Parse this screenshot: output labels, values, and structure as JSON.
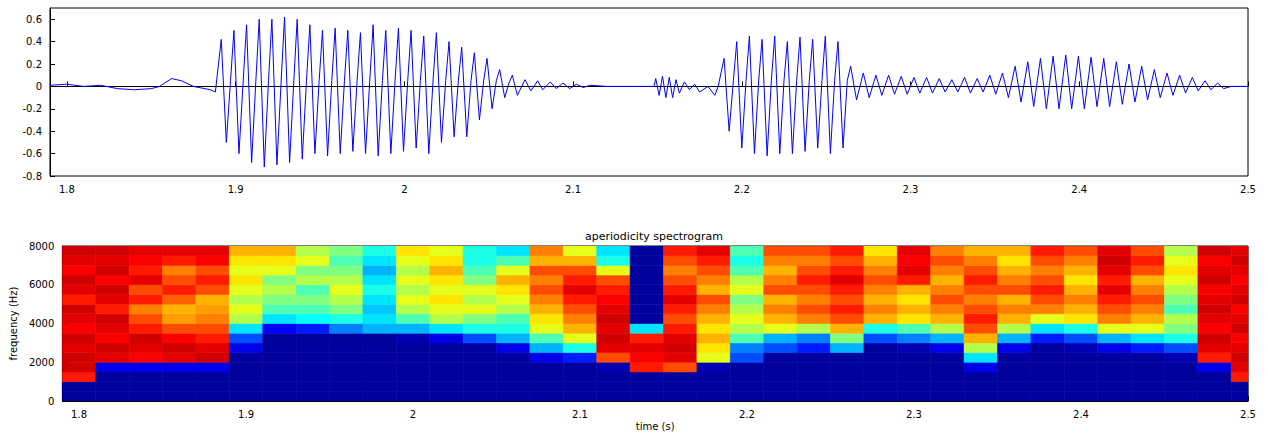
{
  "chart_data": [
    {
      "type": "line",
      "color": "#0000ff",
      "xlim": [
        1.79,
        2.5
      ],
      "ylim": [
        -0.8,
        0.7
      ],
      "xticks": [
        1.8,
        1.9,
        2,
        2.1,
        2.2,
        2.3,
        2.4,
        2.5
      ],
      "yticks": [
        -0.8,
        -0.6,
        -0.4,
        -0.2,
        0,
        0.2,
        0.4,
        0.6
      ],
      "x": [
        1.79,
        1.8,
        1.81,
        1.82,
        1.83,
        1.84,
        1.85,
        1.855,
        1.862,
        1.868,
        1.875,
        1.885,
        1.888,
        1.8915,
        1.8945,
        1.897,
        1.899,
        1.902,
        1.9045,
        1.9065,
        1.9095,
        1.912,
        1.914,
        1.917,
        1.9195,
        1.9215,
        1.9245,
        1.927,
        1.929,
        1.932,
        1.9345,
        1.9365,
        1.9395,
        1.942,
        1.944,
        1.947,
        1.9495,
        1.9515,
        1.9545,
        1.957,
        1.959,
        1.962,
        1.9645,
        1.9665,
        1.9695,
        1.972,
        1.974,
        1.977,
        1.9795,
        1.9815,
        1.9845,
        1.987,
        1.989,
        1.992,
        1.9945,
        1.9965,
        1.9995,
        2.002,
        2.004,
        2.007,
        2.0095,
        2.0115,
        2.0145,
        2.017,
        2.019,
        2.022,
        2.0245,
        2.0265,
        2.0295,
        2.032,
        2.034,
        2.037,
        2.0395,
        2.0415,
        2.0445,
        2.047,
        2.049,
        2.052,
        2.0545,
        2.0565,
        2.0595,
        2.062,
        2.064,
        2.067,
        2.0715,
        2.075,
        2.079,
        2.082,
        2.0865,
        2.09,
        2.094,
        2.098,
        2.102,
        2.106,
        2.11,
        2.12,
        2.13,
        2.148,
        2.149,
        2.151,
        2.153,
        2.155,
        2.157,
        2.159,
        2.161,
        2.163,
        2.166,
        2.169,
        2.172,
        2.175,
        2.18,
        2.184,
        2.186,
        2.1895,
        2.1925,
        2.195,
        2.197,
        2.2,
        2.2025,
        2.2045,
        2.2075,
        2.21,
        2.212,
        2.215,
        2.2175,
        2.2195,
        2.2225,
        2.225,
        2.227,
        2.23,
        2.2325,
        2.2345,
        2.2375,
        2.24,
        2.242,
        2.245,
        2.2475,
        2.2495,
        2.2525,
        2.255,
        2.257,
        2.26,
        2.2625,
        2.2645,
        2.268,
        2.272,
        2.2755,
        2.2795,
        2.283,
        2.287,
        2.2905,
        2.2945,
        2.298,
        2.302,
        2.3055,
        2.3095,
        2.313,
        2.317,
        2.3205,
        2.3245,
        2.328,
        2.332,
        2.3355,
        2.3395,
        2.343,
        2.347,
        2.3505,
        2.3545,
        2.358,
        2.362,
        2.3655,
        2.3695,
        2.373,
        2.377,
        2.3805,
        2.3845,
        2.388,
        2.392,
        2.3955,
        2.3995,
        2.403,
        2.407,
        2.4105,
        2.4145,
        2.418,
        2.422,
        2.4255,
        2.4295,
        2.433,
        2.437,
        2.4405,
        2.4445,
        2.448,
        2.452,
        2.4555,
        2.4595,
        2.463,
        2.467,
        2.4705,
        2.4745,
        2.478,
        2.482,
        2.4855,
        2.49,
        2.5
      ],
      "values": [
        0.01,
        0.02,
        0,
        0.01,
        -0.02,
        -0.03,
        -0.02,
        0,
        0.07,
        0.05,
        0,
        -0.03,
        -0.05,
        0.42,
        -0.5,
        0.05,
        0.5,
        -0.6,
        0.05,
        0.55,
        -0.68,
        0.05,
        0.6,
        -0.72,
        0.05,
        0.6,
        -0.7,
        0.05,
        0.62,
        -0.68,
        0.05,
        0.6,
        -0.65,
        0.05,
        0.55,
        -0.6,
        0.05,
        0.5,
        -0.62,
        0.05,
        0.52,
        -0.6,
        0.05,
        0.5,
        -0.58,
        0.05,
        0.48,
        -0.6,
        0.05,
        0.55,
        -0.62,
        0.05,
        0.5,
        -0.6,
        0.05,
        0.52,
        -0.58,
        0.05,
        0.5,
        -0.55,
        0.05,
        0.45,
        -0.6,
        0.05,
        0.48,
        -0.5,
        0.05,
        0.4,
        -0.45,
        0.05,
        0.35,
        -0.45,
        0.05,
        0.3,
        -0.3,
        0.05,
        0.25,
        -0.2,
        0.05,
        0.15,
        -0.1,
        0.03,
        0.1,
        -0.08,
        0.06,
        -0.04,
        0.05,
        -0.03,
        0.04,
        -0.02,
        0.03,
        -0.02,
        0.02,
        -0.01,
        0.01,
        0,
        0,
        0,
        0.07,
        -0.08,
        0.09,
        -0.1,
        0.08,
        -0.1,
        0.06,
        -0.06,
        0.04,
        -0.03,
        0.02,
        -0.05,
        0,
        -0.08,
        0,
        0.25,
        -0.4,
        0.05,
        0.4,
        -0.55,
        0.05,
        0.45,
        -0.6,
        0.05,
        0.42,
        -0.62,
        0.05,
        0.45,
        -0.6,
        0.05,
        0.4,
        -0.6,
        0.05,
        0.44,
        -0.58,
        0.05,
        0.42,
        -0.55,
        0.05,
        0.45,
        -0.6,
        0.05,
        0.4,
        -0.55,
        0.05,
        0.18,
        -0.12,
        0.12,
        -0.1,
        0.1,
        -0.08,
        0.1,
        -0.07,
        0.09,
        -0.07,
        0.08,
        -0.06,
        0.08,
        -0.06,
        0.07,
        -0.05,
        0.06,
        -0.05,
        0.08,
        -0.06,
        0.07,
        -0.05,
        0.1,
        -0.07,
        0.12,
        -0.1,
        0.18,
        -0.14,
        0.22,
        -0.18,
        0.25,
        -0.2,
        0.27,
        -0.2,
        0.28,
        -0.2,
        0.27,
        -0.2,
        0.26,
        -0.18,
        0.25,
        -0.18,
        0.22,
        -0.16,
        0.2,
        -0.14,
        0.18,
        -0.12,
        0.15,
        -0.1,
        0.12,
        -0.08,
        0.1,
        -0.06,
        0.08,
        -0.04,
        0.05,
        -0.03,
        0.03,
        -0.02,
        0,
        0
      ]
    },
    {
      "type": "heatmap",
      "title": "aperiodicity spectrogram",
      "x_label": "time (s)",
      "y_label": "frequency (Hz)",
      "xlim": [
        1.79,
        2.5
      ],
      "ylim": [
        0,
        8000
      ],
      "xticks": [
        1.8,
        1.9,
        2,
        2.1,
        2.2,
        2.3,
        2.4,
        2.5
      ],
      "yticks": [
        0,
        2000,
        4000,
        6000,
        8000
      ],
      "color_range": [
        0,
        1
      ],
      "time_edges": [
        1.79,
        1.81,
        1.83,
        1.85,
        1.87,
        1.89,
        1.91,
        1.93,
        1.95,
        1.97,
        1.99,
        2.01,
        2.03,
        2.05,
        2.07,
        2.09,
        2.11,
        2.13,
        2.15,
        2.17,
        2.19,
        2.21,
        2.23,
        2.25,
        2.27,
        2.29,
        2.31,
        2.33,
        2.35,
        2.37,
        2.39,
        2.41,
        2.43,
        2.45,
        2.47,
        2.49,
        2.51
      ],
      "frequency_edges": [
        0,
        500,
        1000,
        1500,
        2000,
        2500,
        3000,
        3500,
        4000,
        4500,
        5000,
        5500,
        6000,
        6500,
        7000,
        7500,
        8000
      ],
      "cells": [
        [
          0.03,
          0.03,
          0.85,
          0.92,
          0.92,
          0.9,
          0.92,
          0.88,
          0.9,
          0.92,
          0.85,
          0.9,
          0.92,
          0.88,
          0.9,
          0.92
        ],
        [
          0.03,
          0.03,
          0.03,
          0.1,
          0.9,
          0.92,
          0.88,
          0.9,
          0.92,
          0.85,
          0.9,
          0.92,
          0.88,
          0.92,
          0.9,
          0.92
        ],
        [
          0.03,
          0.03,
          0.03,
          0.1,
          0.88,
          0.9,
          0.92,
          0.85,
          0.8,
          0.75,
          0.85,
          0.8,
          0.9,
          0.85,
          0.88,
          0.9
        ],
        [
          0.03,
          0.03,
          0.03,
          0.1,
          0.9,
          0.92,
          0.88,
          0.8,
          0.72,
          0.7,
          0.78,
          0.85,
          0.8,
          0.75,
          0.85,
          0.9
        ],
        [
          0.03,
          0.03,
          0.03,
          0.1,
          0.92,
          0.9,
          0.85,
          0.8,
          0.75,
          0.72,
          0.7,
          0.8,
          0.85,
          0.8,
          0.88,
          0.9
        ],
        [
          0.03,
          0.03,
          0.03,
          0.03,
          0.03,
          0.1,
          0.2,
          0.35,
          0.55,
          0.6,
          0.55,
          0.6,
          0.65,
          0.6,
          0.65,
          0.7
        ],
        [
          0.03,
          0.03,
          0.03,
          0.03,
          0.03,
          0.03,
          0.03,
          0.12,
          0.35,
          0.45,
          0.5,
          0.55,
          0.5,
          0.6,
          0.65,
          0.7
        ],
        [
          0.03,
          0.03,
          0.03,
          0.03,
          0.03,
          0.03,
          0.03,
          0.15,
          0.38,
          0.45,
          0.5,
          0.45,
          0.55,
          0.5,
          0.6,
          0.55
        ],
        [
          0.03,
          0.03,
          0.03,
          0.03,
          0.03,
          0.03,
          0.03,
          0.25,
          0.4,
          0.5,
          0.55,
          0.6,
          0.55,
          0.5,
          0.45,
          0.5
        ],
        [
          0.03,
          0.03,
          0.03,
          0.03,
          0.03,
          0.03,
          0.03,
          0.3,
          0.35,
          0.32,
          0.35,
          0.4,
          0.35,
          0.3,
          0.35,
          0.4
        ],
        [
          0.03,
          0.03,
          0.03,
          0.03,
          0.03,
          0.03,
          0.05,
          0.3,
          0.45,
          0.55,
          0.6,
          0.55,
          0.6,
          0.55,
          0.6,
          0.65
        ],
        [
          0.03,
          0.03,
          0.03,
          0.03,
          0.03,
          0.03,
          0.1,
          0.35,
          0.55,
          0.6,
          0.65,
          0.6,
          0.65,
          0.7,
          0.65,
          0.6
        ],
        [
          0.03,
          0.03,
          0.03,
          0.03,
          0.03,
          0.03,
          0.2,
          0.4,
          0.5,
          0.6,
          0.55,
          0.6,
          0.5,
          0.45,
          0.4,
          0.4
        ],
        [
          0.03,
          0.03,
          0.03,
          0.03,
          0.03,
          0.1,
          0.3,
          0.4,
          0.45,
          0.55,
          0.6,
          0.65,
          0.7,
          0.6,
          0.45,
          0.35
        ],
        [
          0.03,
          0.03,
          0.03,
          0.03,
          0.1,
          0.3,
          0.45,
          0.6,
          0.65,
          0.7,
          0.75,
          0.8,
          0.75,
          0.8,
          0.7,
          0.75
        ],
        [
          0.03,
          0.03,
          0.03,
          0.03,
          0.15,
          0.4,
          0.6,
          0.7,
          0.75,
          0.8,
          0.85,
          0.9,
          0.85,
          0.8,
          0.7,
          0.6
        ],
        [
          0.03,
          0.03,
          0.03,
          0.05,
          0.8,
          0.9,
          0.92,
          0.9,
          0.92,
          0.9,
          0.88,
          0.85,
          0.8,
          0.6,
          0.4,
          0.35
        ],
        [
          0.03,
          0.03,
          0.03,
          0.85,
          0.88,
          0.9,
          0.85,
          0.35,
          0.03,
          0.03,
          0.03,
          0.03,
          0.03,
          0.03,
          0.03,
          0.03
        ],
        [
          0.03,
          0.03,
          0.03,
          0.8,
          0.9,
          0.92,
          0.9,
          0.85,
          0.8,
          0.85,
          0.9,
          0.85,
          0.8,
          0.75,
          0.8,
          0.85
        ],
        [
          0.03,
          0.03,
          0.03,
          0.05,
          0.6,
          0.65,
          0.7,
          0.65,
          0.7,
          0.75,
          0.8,
          0.7,
          0.75,
          0.8,
          0.85,
          0.9
        ],
        [
          0.03,
          0.03,
          0.03,
          0.03,
          0.2,
          0.25,
          0.45,
          0.55,
          0.6,
          0.55,
          0.5,
          0.6,
          0.55,
          0.45,
          0.4,
          0.45
        ],
        [
          0.03,
          0.03,
          0.03,
          0.03,
          0.03,
          0.2,
          0.3,
          0.6,
          0.7,
          0.75,
          0.7,
          0.8,
          0.75,
          0.7,
          0.75,
          0.8
        ],
        [
          0.03,
          0.03,
          0.03,
          0.03,
          0.03,
          0.15,
          0.25,
          0.55,
          0.75,
          0.8,
          0.75,
          0.8,
          0.85,
          0.8,
          0.75,
          0.8
        ],
        [
          0.03,
          0.03,
          0.03,
          0.03,
          0.03,
          0.3,
          0.5,
          0.7,
          0.8,
          0.85,
          0.8,
          0.85,
          0.9,
          0.85,
          0.8,
          0.85
        ],
        [
          0.03,
          0.03,
          0.03,
          0.03,
          0.03,
          0.03,
          0.2,
          0.4,
          0.7,
          0.75,
          0.7,
          0.75,
          0.8,
          0.75,
          0.7,
          0.65
        ],
        [
          0.03,
          0.03,
          0.03,
          0.03,
          0.03,
          0.05,
          0.25,
          0.45,
          0.65,
          0.7,
          0.65,
          0.7,
          0.85,
          0.9,
          0.88,
          0.9
        ],
        [
          0.03,
          0.03,
          0.03,
          0.03,
          0.03,
          0.1,
          0.3,
          0.55,
          0.7,
          0.75,
          0.8,
          0.75,
          0.7,
          0.75,
          0.8,
          0.75
        ],
        [
          0.03,
          0.03,
          0.03,
          0.1,
          0.35,
          0.55,
          0.7,
          0.8,
          0.85,
          0.8,
          0.75,
          0.8,
          0.85,
          0.8,
          0.75,
          0.7
        ],
        [
          0.03,
          0.03,
          0.03,
          0.03,
          0.03,
          0.1,
          0.3,
          0.55,
          0.7,
          0.75,
          0.7,
          0.8,
          0.75,
          0.7,
          0.65,
          0.7
        ],
        [
          0.03,
          0.03,
          0.03,
          0.03,
          0.03,
          0.03,
          0.15,
          0.35,
          0.6,
          0.75,
          0.8,
          0.85,
          0.8,
          0.75,
          0.8,
          0.85
        ],
        [
          0.03,
          0.03,
          0.03,
          0.03,
          0.03,
          0.05,
          0.2,
          0.4,
          0.65,
          0.7,
          0.75,
          0.7,
          0.65,
          0.7,
          0.75,
          0.8
        ],
        [
          0.03,
          0.03,
          0.03,
          0.03,
          0.03,
          0.1,
          0.3,
          0.6,
          0.75,
          0.8,
          0.85,
          0.9,
          0.85,
          0.9,
          0.92,
          0.9
        ],
        [
          0.03,
          0.03,
          0.03,
          0.03,
          0.03,
          0.15,
          0.35,
          0.6,
          0.7,
          0.75,
          0.8,
          0.75,
          0.7,
          0.8,
          0.85,
          0.8
        ],
        [
          0.03,
          0.03,
          0.03,
          0.03,
          0.05,
          0.2,
          0.4,
          0.5,
          0.55,
          0.45,
          0.5,
          0.55,
          0.6,
          0.65,
          0.6,
          0.55
        ],
        [
          0.03,
          0.03,
          0.03,
          0.1,
          0.85,
          0.9,
          0.92,
          0.88,
          0.9,
          0.92,
          0.9,
          0.88,
          0.92,
          0.9,
          0.88,
          0.92
        ],
        [
          0.03,
          0.03,
          0.85,
          0.9,
          0.92,
          0.9,
          0.88,
          0.92,
          0.9,
          0.88,
          0.92,
          0.9,
          0.88,
          0.9,
          0.92,
          0.9
        ]
      ]
    }
  ]
}
